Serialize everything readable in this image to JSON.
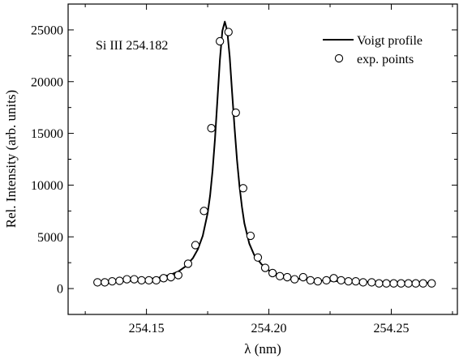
{
  "chart_data": {
    "type": "line",
    "title": "",
    "xlabel": "λ (nm)",
    "ylabel": "Rel. Intensity (arb. units)",
    "xlim": [
      254.118,
      254.277
    ],
    "ylim": [
      -2500,
      27500
    ],
    "x_ticks": [
      254.15,
      254.2,
      254.25
    ],
    "x_tick_labels": [
      "254.15",
      "254.20",
      "254.25"
    ],
    "y_ticks": [
      0,
      5000,
      10000,
      15000,
      20000,
      25000
    ],
    "y_tick_labels": [
      "0",
      "5000",
      "10000",
      "15000",
      "20000",
      "25000"
    ],
    "grid": false,
    "legend_position": "top-right",
    "annotation": "Si III 254.182",
    "series": [
      {
        "name": "Voigt profile",
        "kind": "line",
        "color": "#000000",
        "x": [
          254.13,
          254.135,
          254.14,
          254.145,
          254.15,
          254.155,
          254.16,
          254.163,
          254.166,
          254.169,
          254.171,
          254.173,
          254.175,
          254.176,
          254.177,
          254.178,
          254.179,
          254.18,
          254.181,
          254.182,
          254.183,
          254.184,
          254.185,
          254.186,
          254.187,
          254.188,
          254.189,
          254.19,
          254.192,
          254.194,
          254.197,
          254.2,
          254.205,
          254.21,
          254.215,
          254.22,
          254.23,
          254.24,
          254.25,
          254.26,
          254.267
        ],
        "y": [
          600,
          650,
          700,
          780,
          900,
          1050,
          1350,
          1650,
          2150,
          2950,
          3800,
          5100,
          7300,
          9000,
          11400,
          14500,
          18300,
          22100,
          24900,
          25800,
          24900,
          22400,
          18900,
          15500,
          12400,
          9900,
          7900,
          6300,
          4350,
          3250,
          2350,
          1750,
          1250,
          1000,
          880,
          800,
          700,
          640,
          600,
          570,
          550
        ]
      },
      {
        "name": "exp. points",
        "kind": "scatter",
        "color": "#000000",
        "x": [
          254.13,
          254.133,
          254.136,
          254.139,
          254.142,
          254.145,
          254.148,
          254.151,
          254.154,
          254.157,
          254.16,
          254.163,
          254.167,
          254.17,
          254.1735,
          254.1765,
          254.18,
          254.1835,
          254.1865,
          254.1895,
          254.1925,
          254.1955,
          254.1985,
          254.2015,
          254.2045,
          254.2075,
          254.2105,
          254.214,
          254.217,
          254.22,
          254.2235,
          254.2265,
          254.2295,
          254.2325,
          254.2355,
          254.2385,
          254.242,
          254.245,
          254.248,
          254.251,
          254.254,
          254.257,
          254.26,
          254.263,
          254.2665
        ],
        "y": [
          600,
          600,
          700,
          750,
          900,
          900,
          800,
          800,
          800,
          1000,
          1100,
          1300,
          2400,
          4200,
          7500,
          15500,
          23900,
          24800,
          17000,
          9700,
          5100,
          3000,
          2000,
          1500,
          1200,
          1100,
          900,
          1100,
          800,
          700,
          800,
          1000,
          800,
          700,
          700,
          600,
          600,
          500,
          500,
          500,
          500,
          500,
          500,
          500,
          500
        ]
      }
    ]
  }
}
